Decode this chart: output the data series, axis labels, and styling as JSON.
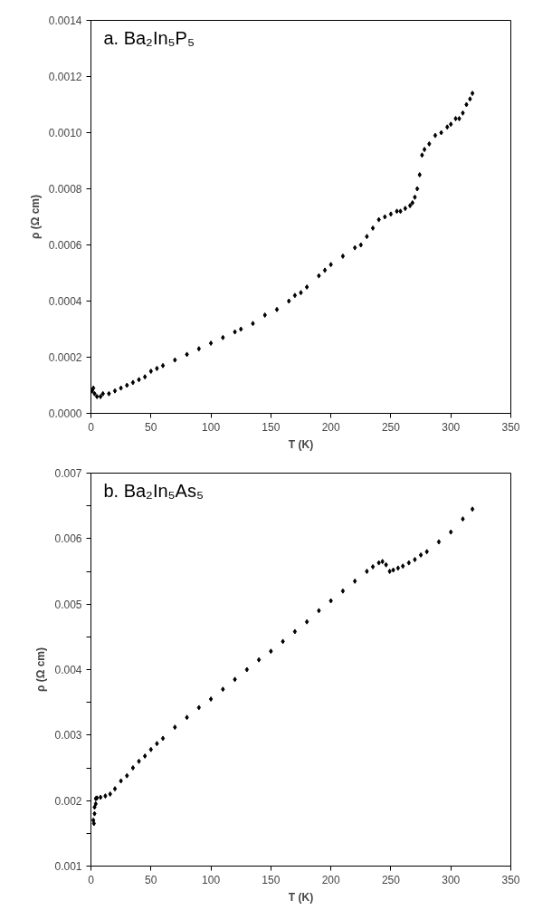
{
  "chart_data": [
    {
      "type": "scatter",
      "title": "a.  Ba₂In₅P₅",
      "xlabel": "T (K)",
      "ylabel": "ρ (Ω cm)",
      "marker": "diamond",
      "xlim": [
        0,
        350
      ],
      "xticks": [
        0,
        50,
        100,
        150,
        200,
        250,
        300,
        350
      ],
      "ylim": [
        0,
        0.0014
      ],
      "yticks": [
        {
          "value": 0,
          "label": "0.0000"
        },
        {
          "value": 0.0002,
          "label": "0.0002"
        },
        {
          "value": 0.0004,
          "label": "0.0004"
        },
        {
          "value": 0.0006,
          "label": "0.0006"
        },
        {
          "value": 0.0008,
          "label": "0.0008"
        },
        {
          "value": 0.001,
          "label": "0.0010"
        },
        {
          "value": 0.0012,
          "label": "0.0012"
        },
        {
          "value": 0.0014,
          "label": "0.0014"
        }
      ],
      "series": [
        {
          "color": "#000000",
          "x": [
            1,
            2,
            3,
            5,
            8,
            10,
            15,
            20,
            25,
            30,
            35,
            40,
            45,
            50,
            55,
            60,
            70,
            80,
            90,
            100,
            110,
            120,
            125,
            135,
            145,
            155,
            165,
            170,
            175,
            180,
            190,
            195,
            200,
            210,
            220,
            225,
            230,
            235,
            240,
            245,
            250,
            255,
            258,
            262,
            266,
            268,
            270,
            272,
            274,
            276,
            278,
            282,
            287,
            292,
            297,
            300,
            304,
            307,
            310,
            313,
            316,
            318
          ],
          "values": [
            8e-05,
            9e-05,
            7e-05,
            6e-05,
            6e-05,
            7e-05,
            7e-05,
            8e-05,
            9e-05,
            0.0001,
            0.00011,
            0.00012,
            0.00013,
            0.00015,
            0.00016,
            0.00017,
            0.00019,
            0.00021,
            0.00023,
            0.00025,
            0.00027,
            0.00029,
            0.0003,
            0.00032,
            0.00035,
            0.00037,
            0.0004,
            0.00042,
            0.00043,
            0.00045,
            0.00049,
            0.00051,
            0.00053,
            0.00056,
            0.00059,
            0.0006,
            0.00063,
            0.00066,
            0.00069,
            0.0007,
            0.00071,
            0.00072,
            0.00072,
            0.00073,
            0.00074,
            0.00075,
            0.00077,
            0.0008,
            0.00085,
            0.00092,
            0.00094,
            0.00096,
            0.00099,
            0.001,
            0.00102,
            0.00103,
            0.00105,
            0.00105,
            0.00107,
            0.0011,
            0.00112,
            0.00114
          ]
        }
      ]
    },
    {
      "type": "scatter",
      "title": "b.  Ba₂In₅As₅",
      "xlabel": "T (K)",
      "ylabel": "ρ (Ω cm)",
      "marker": "diamond",
      "xlim": [
        0,
        350
      ],
      "xticks": [
        0,
        50,
        100,
        150,
        200,
        250,
        300,
        350
      ],
      "ylim": [
        0.001,
        0.007
      ],
      "yticks": [
        {
          "value": 0.001,
          "label": "0.001"
        },
        {
          "value": 0.0015,
          "label": null
        },
        {
          "value": 0.002,
          "label": "0.002"
        },
        {
          "value": 0.0025,
          "label": null
        },
        {
          "value": 0.003,
          "label": "0.003"
        },
        {
          "value": 0.0035,
          "label": null
        },
        {
          "value": 0.004,
          "label": "0.004"
        },
        {
          "value": 0.0045,
          "label": null
        },
        {
          "value": 0.005,
          "label": "0.005"
        },
        {
          "value": 0.0055,
          "label": null
        },
        {
          "value": 0.006,
          "label": "0.006"
        },
        {
          "value": 0.0065,
          "label": null
        },
        {
          "value": 0.007,
          "label": "0.007"
        }
      ],
      "series": [
        {
          "color": "#000000",
          "x": [
            2,
            2.5,
            3,
            3,
            4,
            4,
            5,
            8,
            12,
            16,
            20,
            25,
            30,
            35,
            40,
            45,
            50,
            55,
            60,
            70,
            80,
            90,
            100,
            110,
            120,
            130,
            140,
            150,
            160,
            170,
            180,
            190,
            200,
            210,
            220,
            230,
            235,
            240,
            243,
            246,
            249,
            252,
            256,
            260,
            265,
            270,
            275,
            280,
            290,
            300,
            310,
            318
          ],
          "values": [
            0.0017,
            0.00165,
            0.0018,
            0.0019,
            0.00195,
            0.00203,
            0.00204,
            0.00205,
            0.00207,
            0.0021,
            0.00218,
            0.0023,
            0.00238,
            0.0025,
            0.0026,
            0.00268,
            0.00278,
            0.00287,
            0.00295,
            0.00312,
            0.00327,
            0.00342,
            0.00355,
            0.0037,
            0.00385,
            0.004,
            0.00415,
            0.00428,
            0.00443,
            0.00458,
            0.00473,
            0.0049,
            0.00505,
            0.0052,
            0.00535,
            0.0055,
            0.00557,
            0.00563,
            0.00565,
            0.0056,
            0.0055,
            0.00552,
            0.00555,
            0.00558,
            0.00563,
            0.00568,
            0.00575,
            0.0058,
            0.00595,
            0.0061,
            0.0063,
            0.00645
          ]
        }
      ]
    }
  ]
}
